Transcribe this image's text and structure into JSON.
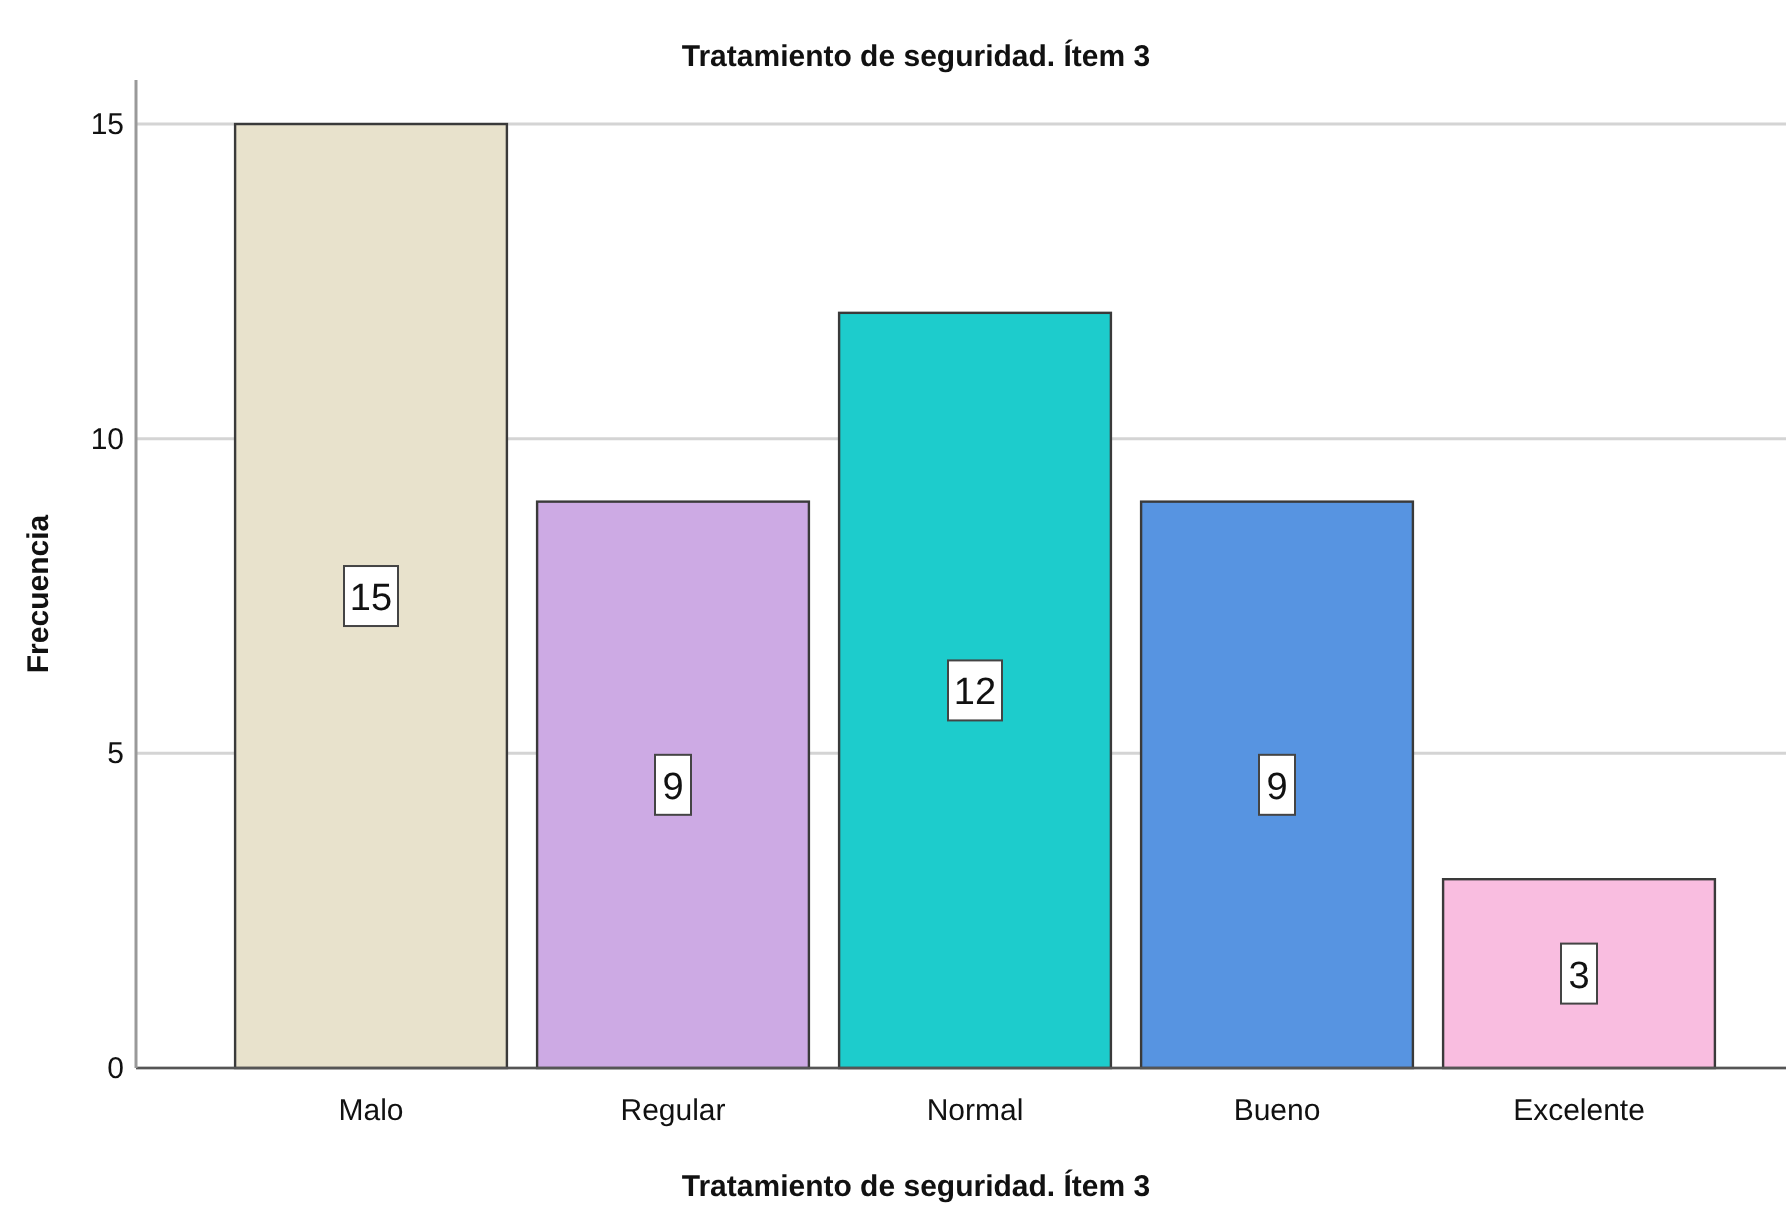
{
  "chart_data": {
    "type": "bar",
    "title": "Tratamiento de seguridad. Ítem 3",
    "xlabel": "Tratamiento de seguridad. Ítem 3",
    "ylabel": "Frecuencia",
    "categories": [
      "Malo",
      "Regular",
      "Normal",
      "Bueno",
      "Excelente"
    ],
    "values": [
      15,
      9,
      12,
      9,
      3
    ],
    "colors": [
      "#e8e2cc",
      "#cdaae4",
      "#1dcccc",
      "#5794e1",
      "#f9bde0"
    ],
    "ylim": [
      0,
      15.7
    ],
    "yticks": [
      0,
      5,
      10,
      15
    ],
    "grid": "y",
    "data_labels": true
  }
}
